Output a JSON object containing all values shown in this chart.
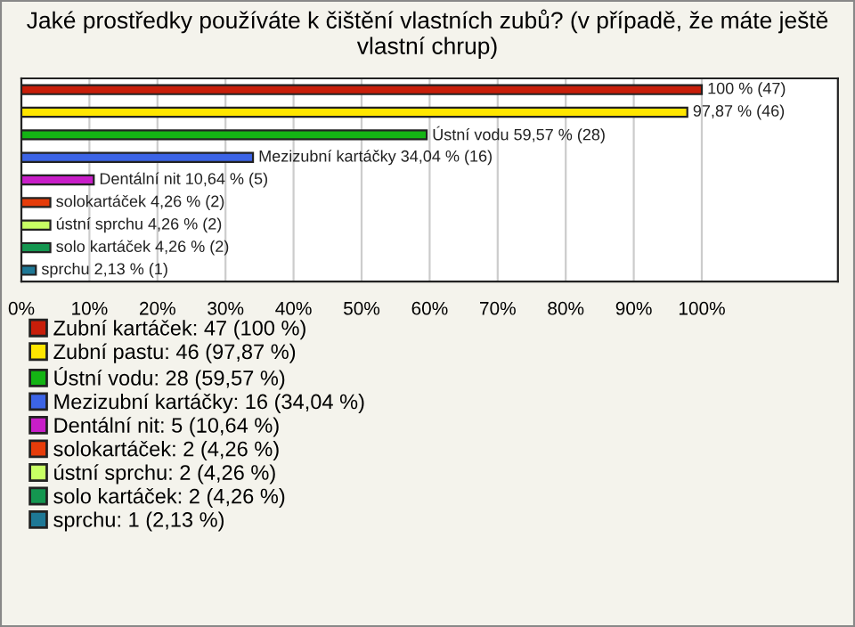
{
  "chart_data": {
    "type": "bar",
    "orientation": "horizontal",
    "title": "Jaké prostředky používáte k čištění vlastních zubů? (v případě, že máte ještě vlastní chrup)",
    "categories": [
      null,
      null,
      null,
      null,
      null,
      null,
      null,
      null,
      null
    ],
    "series": [
      {
        "name": "Zubní kartáček: 47 (100 %)",
        "color": "#c81e0a",
        "values": [
          100,
          null,
          null,
          null,
          null,
          null,
          null,
          null,
          null
        ],
        "value_labels": [
          "100 % (47)",
          null,
          null,
          null,
          null,
          null,
          null,
          null,
          null
        ]
      },
      {
        "name": "Zubní pastu: 46 (97,87 %)",
        "color": "#ffe600",
        "values": [
          null,
          97.87,
          null,
          null,
          null,
          null,
          null,
          null,
          null
        ],
        "value_labels": [
          null,
          "97,87 % (46)",
          null,
          null,
          null,
          null,
          null,
          null,
          null
        ]
      },
      {
        "name": "Ústní vodu: 28 (59,57 %)",
        "color": "#14b414",
        "values": [
          null,
          null,
          59.57,
          null,
          null,
          null,
          null,
          null,
          null
        ],
        "value_labels": [
          null,
          null,
          "Ústní vodu 59,57 % (28)",
          null,
          null,
          null,
          null,
          null,
          null
        ]
      },
      {
        "name": "Mezizubní kartáčky: 16 (34,04 %)",
        "color": "#3c64e6",
        "values": [
          null,
          null,
          null,
          34.04,
          null,
          null,
          null,
          null,
          null
        ],
        "value_labels": [
          null,
          null,
          null,
          "Mezizubní kartáčky 34,04 % (16)",
          null,
          null,
          null,
          null,
          null
        ]
      },
      {
        "name": "Dentální nit: 5 (10,64 %)",
        "color": "#c81ec8",
        "values": [
          null,
          null,
          null,
          null,
          10.64,
          null,
          null,
          null,
          null
        ],
        "value_labels": [
          null,
          null,
          null,
          null,
          "Dentální nit 10,64 % (5)",
          null,
          null,
          null,
          null
        ]
      },
      {
        "name": "solokartáček: 2 (4,26 %)",
        "color": "#e63c0a",
        "values": [
          null,
          null,
          null,
          null,
          null,
          4.26,
          null,
          null,
          null
        ],
        "value_labels": [
          null,
          null,
          null,
          null,
          null,
          "solokartáček 4,26 % (2)",
          null,
          null,
          null
        ]
      },
      {
        "name": "ústní sprchu: 2 (4,26 %)",
        "color": "#c8ff64",
        "values": [
          null,
          null,
          null,
          null,
          null,
          null,
          4.26,
          null,
          null
        ],
        "value_labels": [
          null,
          null,
          null,
          null,
          null,
          null,
          "ústní sprchu 4,26 % (2)",
          null,
          null
        ]
      },
      {
        "name": "solo kartáček: 2 (4,26 %)",
        "color": "#149650",
        "values": [
          null,
          null,
          null,
          null,
          null,
          null,
          null,
          4.26,
          null
        ],
        "value_labels": [
          null,
          null,
          null,
          null,
          null,
          null,
          null,
          "solo kartáček 4,26 % (2)",
          null
        ]
      },
      {
        "name": "sprchu: 1 (2,13 %)",
        "color": "#1e7896",
        "values": [
          null,
          null,
          null,
          null,
          null,
          null,
          null,
          null,
          2.13
        ],
        "value_labels": [
          null,
          null,
          null,
          null,
          null,
          null,
          null,
          null,
          "sprchu 2,13 % (1)"
        ]
      }
    ],
    "xlim": [
      0,
      120
    ],
    "xticks": [
      {
        "value": 0,
        "label": "0%"
      },
      {
        "value": 10,
        "label": "10%"
      },
      {
        "value": 20,
        "label": "20%"
      },
      {
        "value": 30,
        "label": "30%"
      },
      {
        "value": 40,
        "label": "40%"
      },
      {
        "value": 50,
        "label": "50%"
      },
      {
        "value": 60,
        "label": "60%"
      },
      {
        "value": 70,
        "label": "70%"
      },
      {
        "value": 80,
        "label": "80%"
      },
      {
        "value": 90,
        "label": "90%"
      },
      {
        "value": 100,
        "label": "100%"
      }
    ],
    "grid": "x",
    "legend": "bottom",
    "tick_labels": "x"
  }
}
